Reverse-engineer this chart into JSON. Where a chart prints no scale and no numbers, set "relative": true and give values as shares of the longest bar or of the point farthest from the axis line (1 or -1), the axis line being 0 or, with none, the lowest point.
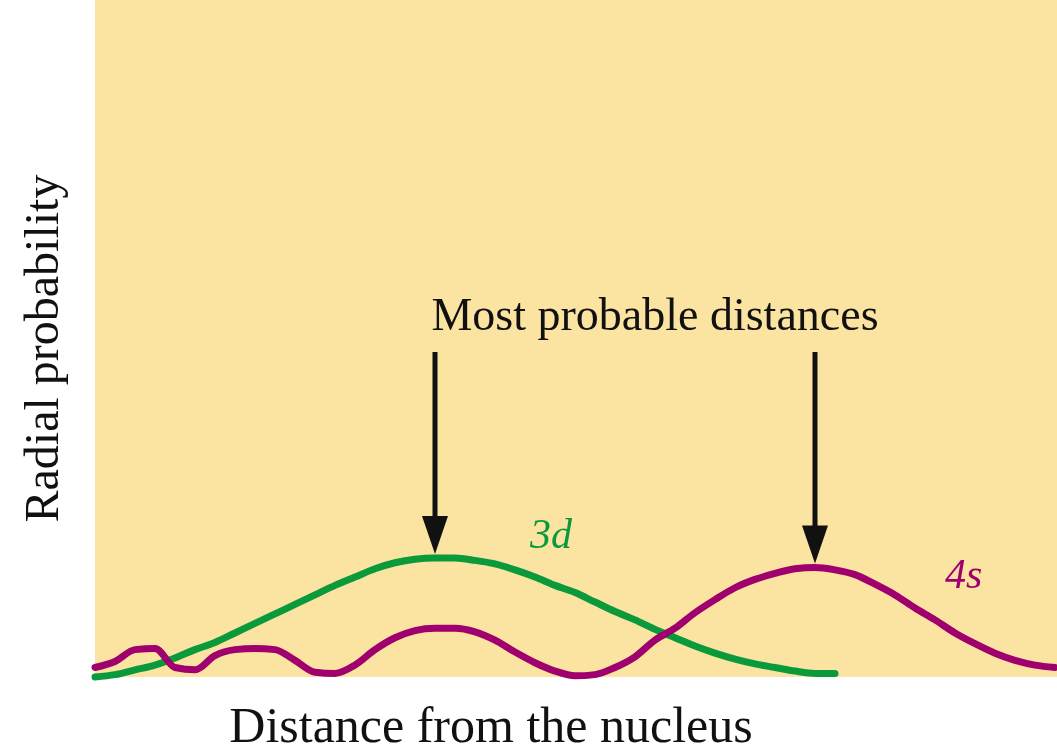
{
  "chart_data": {
    "type": "line",
    "relative": true,
    "xlabel": "Distance from the nucleus",
    "ylabel": "Radial probability",
    "annotations": [
      "Most probable distances"
    ],
    "marker": "none",
    "line_style": "solid",
    "categories": [
      null,
      null,
      null,
      null,
      null,
      null,
      null,
      null,
      null,
      null,
      null,
      null,
      null,
      null,
      null,
      null,
      null,
      null,
      null,
      null,
      null,
      null,
      null,
      null,
      null,
      null,
      null,
      null,
      null,
      null,
      null,
      null,
      null,
      null,
      null,
      null,
      null,
      null,
      null,
      null,
      null,
      null,
      null,
      null,
      null,
      null,
      null,
      null,
      null
    ],
    "series": [
      {
        "name": "3d",
        "color": "#0a9a3c",
        "values": [
          0,
          0.02,
          0.06,
          0.1,
          0.16,
          0.23,
          0.29,
          0.37,
          0.45,
          0.53,
          0.61,
          0.69,
          0.77,
          0.84,
          0.91,
          0.96,
          0.99,
          1,
          1,
          0.98,
          0.95,
          0.9,
          0.84,
          0.77,
          0.71,
          0.63,
          0.55,
          0.48,
          0.4,
          0.33,
          0.26,
          0.2,
          0.15,
          0.11,
          0.08,
          0.05,
          0.03,
          0.03,
          null,
          null,
          null,
          null,
          null,
          null,
          null,
          null,
          null,
          null,
          null
        ]
      },
      {
        "name": "4s",
        "color": "#a0006e",
        "values": [
          0.08,
          0.13,
          0.23,
          0.24,
          0.08,
          0.06,
          0.18,
          0.23,
          0.24,
          0.23,
          0.14,
          0.04,
          0.03,
          0.1,
          0.23,
          0.33,
          0.39,
          0.41,
          0.41,
          0.38,
          0.31,
          0.21,
          0.12,
          0.05,
          0.01,
          0.02,
          0.08,
          0.17,
          0.31,
          0.41,
          0.54,
          0.65,
          0.75,
          0.82,
          0.87,
          0.91,
          0.92,
          0.9,
          0.86,
          0.78,
          0.69,
          0.58,
          0.48,
          0.37,
          0.28,
          0.2,
          0.14,
          0.1,
          0.08
        ]
      }
    ]
  }
}
